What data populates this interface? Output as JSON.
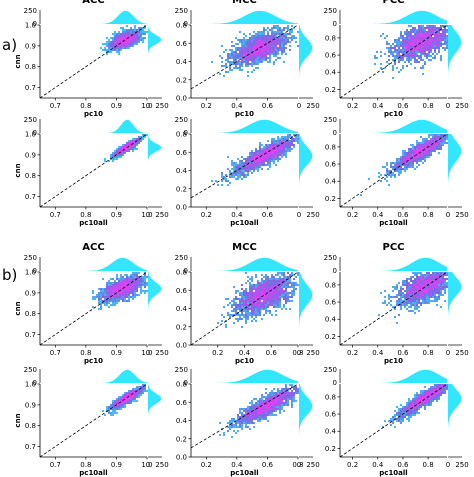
{
  "figure": {
    "panel_labels": [
      "a)",
      "b)"
    ],
    "column_titles": [
      "ACC",
      "MCC",
      "PCC"
    ]
  },
  "colors": {
    "density_low": "#33e6ff",
    "density_mid": "#6f6fe0",
    "density_high": "#ff33ff",
    "marginal": "#33e6ff",
    "diagonal": "#000000"
  },
  "chart_data": [
    {
      "id": "a-acc-pc10",
      "type": "heatmap",
      "title": "ACC",
      "xlabel": "pc10",
      "ylabel": "cnn",
      "xlim": [
        0.65,
        1.0
      ],
      "ylim": [
        0.65,
        1.0
      ],
      "xticks": [
        0.7,
        0.8,
        0.9,
        1.0
      ],
      "xtick_labels": [
        "0.7",
        "0.8",
        "0.9",
        "1.0"
      ],
      "yticks": [
        0.7,
        0.8,
        0.9,
        1.0
      ],
      "ytick_labels": [
        "0.7",
        "0.8",
        "0.9",
        "1.0"
      ],
      "top_hist_ticks": [
        0,
        250
      ],
      "right_hist_ticks": [
        0,
        250
      ],
      "density": {
        "center": [
          0.93,
          0.93
        ],
        "spread_x": 0.025,
        "spread_y": 0.022,
        "corr": 0.6
      },
      "diagonal": true
    },
    {
      "id": "a-mcc-pc10",
      "type": "heatmap",
      "title": "MCC",
      "xlabel": "pc10",
      "ylabel": "",
      "xlim": [
        0.1,
        0.8
      ],
      "ylim": [
        0.0,
        0.8
      ],
      "xticks": [
        0.2,
        0.4,
        0.6
      ],
      "xtick_labels": [
        "0.2",
        "0.4",
        "0.6"
      ],
      "yticks": [
        0.0,
        0.2,
        0.4,
        0.6,
        0.8
      ],
      "ytick_labels": [
        "0.0",
        "0.2",
        "0.4",
        "0.6",
        "0.8"
      ],
      "top_hist_ticks": [
        0,
        250
      ],
      "right_hist_ticks": [
        0,
        250
      ],
      "density": {
        "center": [
          0.55,
          0.55
        ],
        "spread_x": 0.1,
        "spread_y": 0.1,
        "corr": 0.6
      },
      "diagonal": true
    },
    {
      "id": "a-pcc-pc10",
      "type": "heatmap",
      "title": "PCC",
      "xlabel": "pc10",
      "ylabel": "",
      "xlim": [
        0.1,
        0.95
      ],
      "ylim": [
        0.1,
        0.95
      ],
      "xticks": [
        0.2,
        0.4,
        0.6,
        0.8
      ],
      "xtick_labels": [
        "0.2",
        "0.4",
        "0.6",
        "0.8"
      ],
      "yticks": [
        0.2,
        0.4,
        0.6,
        0.8
      ],
      "ytick_labels": [
        "0.2",
        "0.4",
        "0.6",
        "0.8"
      ],
      "top_hist_ticks": [
        0,
        250
      ],
      "right_hist_ticks": [
        0,
        250
      ],
      "density": {
        "center": [
          0.75,
          0.75
        ],
        "spread_x": 0.12,
        "spread_y": 0.12,
        "corr": 0.5
      },
      "diagonal": true
    },
    {
      "id": "a-acc-pc10all",
      "type": "heatmap",
      "title": "",
      "xlabel": "pc10all",
      "ylabel": "cnn",
      "xlim": [
        0.65,
        1.0
      ],
      "ylim": [
        0.65,
        1.0
      ],
      "xticks": [
        0.7,
        0.8,
        0.9,
        1.0
      ],
      "xtick_labels": [
        "0.7",
        "0.8",
        "0.9",
        "1.0"
      ],
      "yticks": [
        0.7,
        0.8,
        0.9,
        1.0
      ],
      "ytick_labels": [
        "0.7",
        "0.8",
        "0.9",
        "1.0"
      ],
      "top_hist_ticks": [
        0,
        250
      ],
      "right_hist_ticks": [
        0,
        250
      ],
      "density": {
        "center": [
          0.935,
          0.935
        ],
        "spread_x": 0.02,
        "spread_y": 0.02,
        "corr": 0.9
      },
      "diagonal": true
    },
    {
      "id": "a-mcc-pc10all",
      "type": "heatmap",
      "title": "",
      "xlabel": "pc10all",
      "ylabel": "",
      "xlim": [
        0.1,
        0.8
      ],
      "ylim": [
        0.0,
        0.8
      ],
      "xticks": [
        0.2,
        0.4,
        0.6
      ],
      "xtick_labels": [
        "0.2",
        "0.4",
        "0.6"
      ],
      "yticks": [
        0.0,
        0.2,
        0.4,
        0.6,
        0.8
      ],
      "ytick_labels": [
        "0.0",
        "0.2",
        "0.4",
        "0.6",
        "0.8"
      ],
      "top_hist_ticks": [
        0,
        250
      ],
      "right_hist_ticks": [
        0,
        250
      ],
      "density": {
        "center": [
          0.58,
          0.56
        ],
        "spread_x": 0.1,
        "spread_y": 0.1,
        "corr": 0.85
      },
      "diagonal": true
    },
    {
      "id": "a-pcc-pc10all",
      "type": "heatmap",
      "title": "",
      "xlabel": "pc10all",
      "ylabel": "",
      "xlim": [
        0.1,
        0.95
      ],
      "ylim": [
        0.1,
        0.95
      ],
      "xticks": [
        0.2,
        0.4,
        0.6,
        0.8
      ],
      "xtick_labels": [
        "0.2",
        "0.4",
        "0.6",
        "0.8"
      ],
      "yticks": [
        0.2,
        0.4,
        0.6,
        0.8
      ],
      "ytick_labels": [
        "0.2",
        "0.4",
        "0.6",
        "0.8"
      ],
      "top_hist_ticks": [
        0,
        250
      ],
      "right_hist_ticks": [
        0,
        250
      ],
      "density": {
        "center": [
          0.75,
          0.75
        ],
        "spread_x": 0.12,
        "spread_y": 0.12,
        "corr": 0.9
      },
      "diagonal": true
    },
    {
      "id": "b-acc-pc10",
      "type": "heatmap",
      "title": "ACC",
      "xlabel": "pc10",
      "ylabel": "cnn",
      "xlim": [
        0.65,
        1.0
      ],
      "ylim": [
        0.65,
        1.0
      ],
      "xticks": [
        0.7,
        0.8,
        0.9,
        1.0
      ],
      "xtick_labels": [
        "0.7",
        "0.8",
        "0.9",
        "1.0"
      ],
      "yticks": [
        0.7,
        0.8,
        0.9,
        1.0
      ],
      "ytick_labels": [
        "0.7",
        "0.8",
        "0.9",
        "1.0"
      ],
      "top_hist_ticks": [
        0,
        250
      ],
      "right_hist_ticks": [
        0,
        250
      ],
      "density": {
        "center": [
          0.92,
          0.92
        ],
        "spread_x": 0.035,
        "spread_y": 0.03,
        "corr": 0.6
      },
      "diagonal": true
    },
    {
      "id": "b-mcc-pc10",
      "type": "heatmap",
      "title": "MCC",
      "xlabel": "pc10",
      "ylabel": "",
      "xlim": [
        0.0,
        0.8
      ],
      "ylim": [
        0.0,
        0.8
      ],
      "xticks": [
        0.2,
        0.4,
        0.6,
        0.8
      ],
      "xtick_labels": [
        "0.2",
        "0.4",
        "0.6",
        "0.8"
      ],
      "yticks": [
        0.0,
        0.2,
        0.4,
        0.6,
        0.8
      ],
      "ytick_labels": [
        "0.0",
        "0.2",
        "0.4",
        "0.6",
        "0.8"
      ],
      "top_hist_ticks": [
        0,
        250
      ],
      "right_hist_ticks": [
        0,
        250
      ],
      "density": {
        "center": [
          0.55,
          0.55
        ],
        "spread_x": 0.11,
        "spread_y": 0.11,
        "corr": 0.55
      },
      "diagonal": true
    },
    {
      "id": "b-pcc-pc10",
      "type": "heatmap",
      "title": "PCC",
      "xlabel": "pc10",
      "ylabel": "",
      "xlim": [
        0.1,
        0.95
      ],
      "ylim": [
        0.1,
        0.95
      ],
      "xticks": [
        0.2,
        0.4,
        0.6,
        0.8
      ],
      "xtick_labels": [
        "0.2",
        "0.4",
        "0.6",
        "0.8"
      ],
      "yticks": [
        0.2,
        0.4,
        0.6,
        0.8
      ],
      "ytick_labels": [
        "0.2",
        "0.4",
        "0.6",
        "0.8"
      ],
      "top_hist_ticks": [
        0,
        250
      ],
      "right_hist_ticks": [
        0,
        250
      ],
      "density": {
        "center": [
          0.78,
          0.78
        ],
        "spread_x": 0.11,
        "spread_y": 0.11,
        "corr": 0.55
      },
      "diagonal": true
    },
    {
      "id": "b-acc-pc10all",
      "type": "heatmap",
      "title": "",
      "xlabel": "pc10all",
      "ylabel": "cnn",
      "xlim": [
        0.65,
        1.0
      ],
      "ylim": [
        0.65,
        1.0
      ],
      "xticks": [
        0.7,
        0.8,
        0.9,
        1.0
      ],
      "xtick_labels": [
        "0.7",
        "0.8",
        "0.9",
        "1.0"
      ],
      "yticks": [
        0.7,
        0.8,
        0.9,
        1.0
      ],
      "ytick_labels": [
        "0.7",
        "0.8",
        "0.9",
        "1.0"
      ],
      "top_hist_ticks": [
        0,
        250
      ],
      "right_hist_ticks": [
        0,
        250
      ],
      "density": {
        "center": [
          0.935,
          0.93
        ],
        "spread_x": 0.025,
        "spread_y": 0.025,
        "corr": 0.9
      },
      "diagonal": true
    },
    {
      "id": "b-mcc-pc10all",
      "type": "heatmap",
      "title": "",
      "xlabel": "pc10all",
      "ylabel": "",
      "xlim": [
        0.1,
        0.8
      ],
      "ylim": [
        0.0,
        0.8
      ],
      "xticks": [
        0.2,
        0.4,
        0.6,
        0.8
      ],
      "xtick_labels": [
        "0.2",
        "0.4",
        "0.6",
        "0.8"
      ],
      "yticks": [
        0.0,
        0.2,
        0.4,
        0.6,
        0.8
      ],
      "ytick_labels": [
        "0.0",
        "0.2",
        "0.4",
        "0.6",
        "0.8"
      ],
      "top_hist_ticks": [
        0,
        250
      ],
      "right_hist_ticks": [
        0,
        250
      ],
      "density": {
        "center": [
          0.6,
          0.56
        ],
        "spread_x": 0.1,
        "spread_y": 0.1,
        "corr": 0.85
      },
      "diagonal": true
    },
    {
      "id": "b-pcc-pc10all",
      "type": "heatmap",
      "title": "",
      "xlabel": "pc10all",
      "ylabel": "",
      "xlim": [
        0.1,
        0.95
      ],
      "ylim": [
        0.1,
        0.95
      ],
      "xticks": [
        0.2,
        0.4,
        0.6,
        0.8
      ],
      "xtick_labels": [
        "0.2",
        "0.4",
        "0.6",
        "0.8"
      ],
      "yticks": [
        0.2,
        0.4,
        0.6,
        0.8
      ],
      "ytick_labels": [
        "0.2",
        "0.4",
        "0.6",
        "0.8"
      ],
      "top_hist_ticks": [
        0,
        250
      ],
      "right_hist_ticks": [
        0,
        250
      ],
      "density": {
        "center": [
          0.78,
          0.78
        ],
        "spread_x": 0.11,
        "spread_y": 0.11,
        "corr": 0.92
      },
      "diagonal": true
    }
  ]
}
